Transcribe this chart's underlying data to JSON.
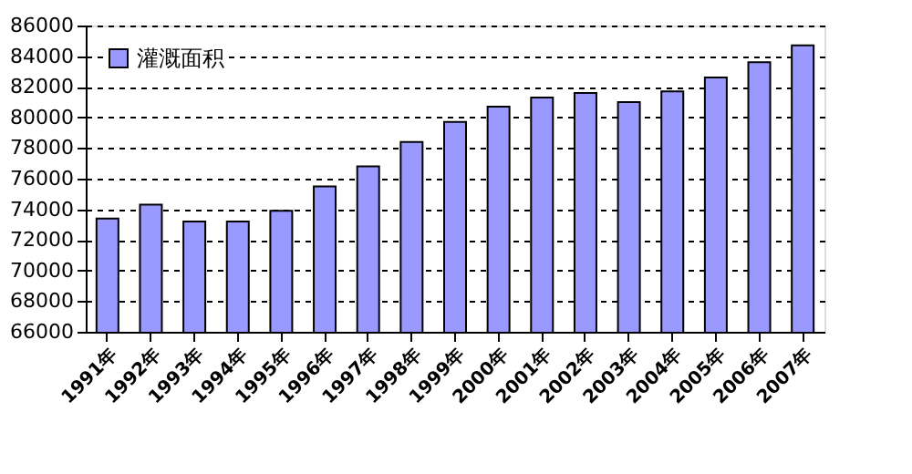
{
  "chart_data": {
    "type": "bar",
    "categories": [
      "1991年",
      "1992年",
      "1993年",
      "1994年",
      "1995年",
      "1996年",
      "1997年",
      "1998年",
      "1999年",
      "2000年",
      "2001年",
      "2002年",
      "2003年",
      "2004年",
      "2005年",
      "2006年",
      "2007年"
    ],
    "series": [
      {
        "name": "灌溉面积",
        "color": "#9999ff",
        "values": [
          73400,
          74300,
          73200,
          73200,
          73900,
          75500,
          76800,
          78400,
          79700,
          80700,
          81300,
          81600,
          81000,
          81700,
          82600,
          83600,
          84700
        ]
      }
    ],
    "ylim": [
      66000,
      86000
    ],
    "yticks": [
      66000,
      68000,
      70000,
      72000,
      74000,
      76000,
      78000,
      80000,
      82000,
      84000,
      86000
    ],
    "grid": "y",
    "legend": "top left"
  }
}
